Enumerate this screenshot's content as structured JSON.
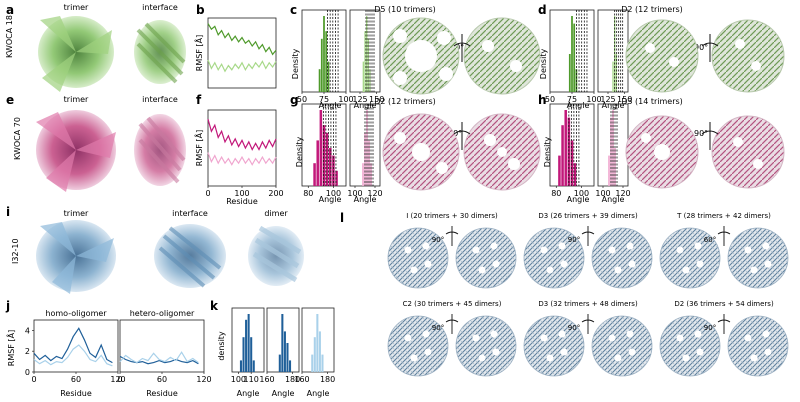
{
  "panel_letters": {
    "a": "a",
    "b": "b",
    "c": "c",
    "d": "d",
    "e": "e",
    "f": "f",
    "g": "g",
    "h": "h",
    "i": "i",
    "j": "j",
    "k": "k",
    "l": "l"
  },
  "row1": {
    "side_label": "KWOCA 18",
    "trimer_caption": "trimer",
    "interface_caption": "interface",
    "rmsf_ylabel": "RMSF [Å]",
    "hist_c_title": "D5 (10 trimers)",
    "hist_d_title": "D2 (12 trimers)",
    "density_label": "Density",
    "angle_label": "Angle",
    "rotation_label": "90°",
    "colors": {
      "dark": "#4f9a2b",
      "light": "#a8d98a",
      "protein": "#8fbf6a"
    }
  },
  "row2": {
    "side_label": "KWOCA 70",
    "trimer_caption": "trimer",
    "interface_caption": "interface",
    "rmsf_ylabel": "RMSF [Å]",
    "residue_label": "Residue",
    "hist_g_title": "D2 (12 trimers)",
    "hist_h_title": "D3 (14 trimers)",
    "density_label": "Density",
    "angle_label": "Angle",
    "rotation_label": "90°",
    "colors": {
      "dark": "#c2187a",
      "light": "#f0a6cf",
      "protein": "#b8427f"
    }
  },
  "row3": {
    "side_label": "I32-10",
    "trimer_caption": "trimer",
    "interface_caption": "interface",
    "dimer_caption": "dimer",
    "j_left_title": "homo-oligomer",
    "j_right_title": "hetero-oligomer",
    "rmsf_ylabel": "RMSF [Å]",
    "residue_label": "Residue",
    "k_ylabel": "density",
    "angle_label": "Angle",
    "colors": {
      "dark": "#1f5f99",
      "light": "#a9d1ea",
      "protein": "#6f9fc4"
    }
  },
  "panel_l": {
    "assemblies": [
      {
        "label": "I (20 trimers + 30 dimers)",
        "rotation": "90°"
      },
      {
        "label": "D3 (26 trimers + 39 dimers)",
        "rotation": "90°"
      },
      {
        "label": "T (28 trimers + 42 dimers)",
        "rotation": "60°"
      },
      {
        "label": "C2 (30 trimers + 45 dimers)",
        "rotation": "90°"
      },
      {
        "label": "D3 (32 trimers + 48 dimers)",
        "rotation": "90°"
      },
      {
        "label": "D2 (36 trimers + 54 dimers)",
        "rotation": "90°"
      }
    ]
  },
  "chart_data": [
    {
      "id": "b",
      "type": "line",
      "ylabel": "RMSF [Å]",
      "xlim": [
        0,
        200
      ],
      "series": [
        {
          "color": "#4f9a2b",
          "x": [
            0,
            10,
            20,
            30,
            40,
            50,
            60,
            70,
            80,
            90,
            100,
            110,
            120,
            130,
            140,
            150,
            160,
            170,
            180,
            190,
            200
          ],
          "y": [
            4.6,
            4.2,
            4.4,
            3.8,
            4.1,
            3.6,
            3.9,
            3.4,
            3.7,
            3.3,
            3.6,
            3.2,
            3.4,
            3.0,
            3.3,
            2.8,
            3.1,
            2.6,
            2.9,
            2.4,
            2.7
          ]
        },
        {
          "color": "#a8d98a",
          "x": [
            0,
            10,
            20,
            30,
            40,
            50,
            60,
            70,
            80,
            90,
            100,
            110,
            120,
            130,
            140,
            150,
            160,
            170,
            180,
            190,
            200
          ],
          "y": [
            2.0,
            1.4,
            1.8,
            1.3,
            1.7,
            1.2,
            1.6,
            1.3,
            1.7,
            1.4,
            1.8,
            1.3,
            1.7,
            1.4,
            1.8,
            1.5,
            1.9,
            1.4,
            1.8,
            1.5,
            1.9
          ]
        }
      ]
    },
    {
      "id": "f",
      "type": "line",
      "ylabel": "RMSF [Å]",
      "xlabel": "Residue",
      "xlim": [
        0,
        200
      ],
      "xticks": [
        0,
        100,
        200
      ],
      "series": [
        {
          "color": "#c2187a",
          "x": [
            0,
            10,
            20,
            30,
            40,
            50,
            60,
            70,
            80,
            90,
            100,
            110,
            120,
            130,
            140,
            150,
            160,
            170,
            180,
            190,
            200
          ],
          "y": [
            4.4,
            3.6,
            4.0,
            3.2,
            3.6,
            2.9,
            3.3,
            2.7,
            3.1,
            2.6,
            3.0,
            2.5,
            2.9,
            2.4,
            2.8,
            2.4,
            2.9,
            2.5,
            3.0,
            2.6,
            3.1
          ]
        },
        {
          "color": "#f0a6cf",
          "x": [
            0,
            10,
            20,
            30,
            40,
            50,
            60,
            70,
            80,
            90,
            100,
            110,
            120,
            130,
            140,
            150,
            160,
            170,
            180,
            190,
            200
          ],
          "y": [
            2.2,
            1.6,
            2.0,
            1.5,
            1.9,
            1.5,
            1.8,
            1.4,
            1.8,
            1.5,
            1.9,
            1.5,
            1.8,
            1.4,
            1.8,
            1.5,
            1.9,
            1.5,
            1.8,
            1.5,
            1.9
          ]
        }
      ]
    },
    {
      "id": "c1",
      "type": "bar",
      "color": "#4f9a2b",
      "xlim": [
        50,
        100
      ],
      "xticks": [
        50,
        75,
        100
      ],
      "x": [
        70,
        72.5,
        75,
        77.5,
        80
      ],
      "values": [
        0.3,
        0.7,
        1.0,
        0.8,
        0.4
      ],
      "vlines": [
        79,
        82,
        85,
        88,
        91
      ]
    },
    {
      "id": "c2",
      "type": "bar",
      "color": "#a8d98a",
      "xlim": [
        110,
        155
      ],
      "xticks": [
        125,
        150
      ],
      "x": [
        130,
        132.5,
        135,
        137.5,
        140
      ],
      "values": [
        0.4,
        0.8,
        1.0,
        0.7,
        0.3
      ],
      "vlines": [
        134,
        137,
        140,
        143,
        146
      ]
    },
    {
      "id": "d1",
      "type": "bar",
      "color": "#4f9a2b",
      "xlim": [
        50,
        100
      ],
      "xticks": [
        50,
        75,
        100
      ],
      "x": [
        72.5,
        75,
        77.5,
        80
      ],
      "values": [
        0.5,
        1.0,
        0.9,
        0.3
      ],
      "vlines": [
        80,
        83,
        86,
        89,
        92
      ]
    },
    {
      "id": "d2",
      "type": "bar",
      "color": "#a8d98a",
      "xlim": [
        110,
        155
      ],
      "xticks": [
        125,
        150
      ],
      "x": [
        132.5,
        135,
        137.5
      ],
      "values": [
        0.4,
        1.0,
        0.5
      ],
      "vlines": [
        135,
        138,
        141,
        144,
        147
      ]
    },
    {
      "id": "g1",
      "type": "bar",
      "color": "#c2187a",
      "xlim": [
        75,
        110
      ],
      "xticks": [
        80,
        100
      ],
      "x": [
        85,
        87.5,
        90,
        92.5,
        95,
        97.5,
        100,
        102.5
      ],
      "values": [
        0.3,
        0.6,
        1.0,
        0.8,
        0.7,
        0.5,
        0.4,
        0.2
      ],
      "vlines": [
        92,
        94,
        96,
        98,
        100,
        102
      ]
    },
    {
      "id": "g2",
      "type": "bar",
      "color": "#f0a6cf",
      "xlim": [
        95,
        125
      ],
      "xticks": [
        100,
        120
      ],
      "x": [
        108,
        110,
        112,
        114,
        116
      ],
      "values": [
        0.3,
        0.7,
        1.0,
        0.6,
        0.3
      ],
      "vlines": [
        110,
        112,
        114,
        116,
        118
      ]
    },
    {
      "id": "h1",
      "type": "bar",
      "color": "#c2187a",
      "xlim": [
        75,
        110
      ],
      "xticks": [
        80,
        100
      ],
      "x": [
        82.5,
        85,
        87.5,
        90,
        92.5,
        95
      ],
      "values": [
        0.4,
        0.8,
        1.0,
        0.9,
        0.6,
        0.3
      ],
      "vlines": [
        90,
        92,
        94,
        96,
        98
      ]
    },
    {
      "id": "h2",
      "type": "bar",
      "color": "#f0a6cf",
      "xlim": [
        95,
        125
      ],
      "xticks": [
        100,
        120
      ],
      "x": [
        106,
        108,
        110,
        112
      ],
      "values": [
        0.4,
        0.9,
        1.0,
        0.5
      ],
      "vlines": [
        108,
        110,
        112,
        114
      ]
    },
    {
      "id": "j_left",
      "type": "line",
      "title": "homo-oligomer",
      "ylabel": "RMSF [Å]",
      "xlabel": "Residue",
      "xlim": [
        0,
        120
      ],
      "ylim": [
        0,
        5
      ],
      "xticks": [
        0,
        60,
        120
      ],
      "yticks": [
        0,
        2,
        4
      ],
      "series": [
        {
          "color": "#1f5f99",
          "x": [
            0,
            8,
            16,
            24,
            32,
            40,
            48,
            56,
            64,
            72,
            80,
            88,
            96,
            104,
            112
          ],
          "y": [
            1.8,
            1.2,
            1.6,
            1.1,
            1.5,
            1.3,
            2.2,
            3.4,
            4.2,
            3.1,
            1.8,
            1.4,
            2.6,
            1.2,
            0.9
          ]
        },
        {
          "color": "#a9d1ea",
          "x": [
            0,
            8,
            16,
            24,
            32,
            40,
            48,
            56,
            64,
            72,
            80,
            88,
            96,
            104,
            112
          ],
          "y": [
            1.2,
            0.8,
            1.1,
            0.7,
            1.0,
            0.9,
            1.4,
            2.2,
            2.6,
            2.0,
            1.2,
            1.0,
            1.6,
            0.8,
            0.6
          ]
        }
      ]
    },
    {
      "id": "j_right",
      "type": "line",
      "title": "hetero-oligomer",
      "xlabel": "Residue",
      "xlim": [
        0,
        120
      ],
      "xticks": [
        0,
        60,
        120
      ],
      "series": [
        {
          "color": "#1f5f99",
          "x": [
            0,
            8,
            16,
            24,
            32,
            40,
            48,
            56,
            64,
            72,
            80,
            88,
            96,
            104,
            112
          ],
          "y": [
            1.5,
            1.2,
            1.0,
            0.9,
            1.0,
            0.8,
            0.9,
            1.1,
            0.9,
            1.0,
            1.2,
            1.0,
            0.9,
            1.1,
            0.8
          ]
        },
        {
          "color": "#a9d1ea",
          "x": [
            0,
            8,
            16,
            24,
            32,
            40,
            48,
            56,
            64,
            72,
            80,
            88,
            96,
            104,
            112
          ],
          "y": [
            1.0,
            1.6,
            1.2,
            0.9,
            1.3,
            1.1,
            1.8,
            1.2,
            1.0,
            1.4,
            1.1,
            1.9,
            1.0,
            1.3,
            0.9
          ]
        }
      ]
    },
    {
      "id": "k1",
      "type": "bar",
      "color": "#1f5f99",
      "xlim": [
        95,
        120
      ],
      "xticks": [
        100,
        110
      ],
      "x": [
        102,
        104,
        106,
        108,
        110,
        112
      ],
      "values": [
        0.2,
        0.6,
        0.9,
        1.0,
        0.6,
        0.2
      ]
    },
    {
      "id": "k2",
      "type": "bar",
      "color": "#1f5f99",
      "xlim": [
        160,
        185
      ],
      "xticks": [
        160,
        180
      ],
      "x": [
        170,
        172,
        174,
        176,
        178
      ],
      "values": [
        0.3,
        1.0,
        0.7,
        0.5,
        0.2
      ]
    },
    {
      "id": "k3",
      "type": "bar",
      "color": "#a9d1ea",
      "xlim": [
        160,
        185
      ],
      "xticks": [
        160,
        180
      ],
      "x": [
        168,
        170,
        172,
        174,
        176
      ],
      "values": [
        0.3,
        0.6,
        1.0,
        0.7,
        0.3
      ]
    }
  ]
}
